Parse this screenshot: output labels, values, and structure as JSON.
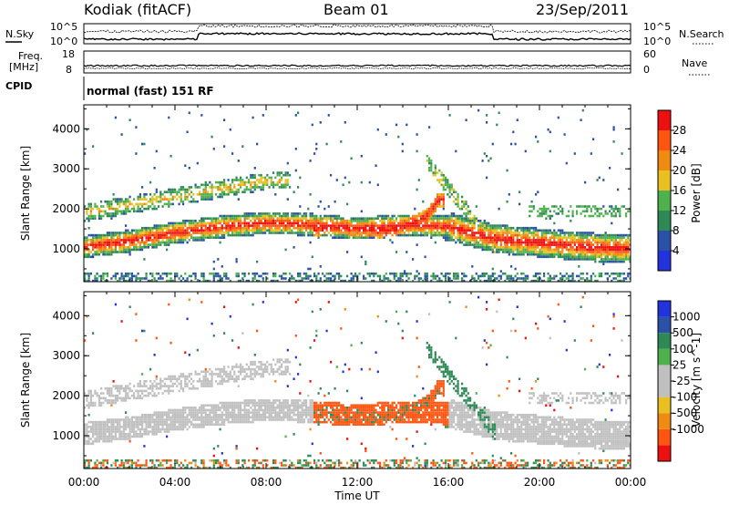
{
  "header": {
    "radar": "Kodiak (fitACF)",
    "beam": "Beam 01",
    "date": "23/Sep/2011"
  },
  "top_labels": {
    "nsky": "N.Sky",
    "freq_line1": "Freq.",
    "freq_line2": "[MHz]",
    "cpid": "CPID",
    "nsearch": "N.Search",
    "nave": "Nave",
    "cpid_text": "normal (fast) 151 RF",
    "noise_tick_hi": "10^5",
    "noise_tick_lo": "10^0",
    "freq_tick_hi": "18",
    "freq_tick_lo": "8",
    "nave_tick_hi": "60",
    "nave_tick_lo": "0"
  },
  "axes": {
    "ylabel": "Slant Range [km]",
    "xlabel": "Time UT",
    "yticks": [
      "1000",
      "2000",
      "3000",
      "4000"
    ],
    "xticks": [
      "00:00",
      "04:00",
      "08:00",
      "12:00",
      "16:00",
      "20:00",
      "00:00"
    ]
  },
  "colors": {
    "power": [
      "#2233dd",
      "#2a50a8",
      "#2e8a55",
      "#4fb04e",
      "#e8c020",
      "#f08a10",
      "#ff5510",
      "#ee1010"
    ],
    "velocity": [
      "#ee1010",
      "#ff5510",
      "#f08a10",
      "#e8c020",
      "#c0c0c0",
      "#c0c0c0",
      "#4fb04e",
      "#2e8a55",
      "#2a50a8",
      "#2233dd"
    ]
  },
  "chart_data": [
    {
      "type": "heatmap",
      "name": "Power",
      "title": "",
      "xlabel": "",
      "ylabel": "Slant Range [km]",
      "xlim_hours": [
        0,
        24
      ],
      "ylim_km": [
        180,
        4600
      ],
      "colorbar": {
        "label": "Power [dB]",
        "ticks": [
          "4",
          "8",
          "12",
          "16",
          "20",
          "24",
          "28"
        ],
        "range": [
          0,
          32
        ]
      },
      "features": [
        {
          "band": "lower",
          "t_hours": [
            0,
            2,
            4,
            6,
            8,
            10,
            12,
            14,
            16,
            18,
            20,
            22,
            24
          ],
          "range_km": [
            1050,
            1200,
            1400,
            1550,
            1650,
            1600,
            1500,
            1600,
            1550,
            1250,
            1150,
            1050,
            1000
          ],
          "max_power_db": 30
        },
        {
          "band": "upper",
          "t_hours": [
            0,
            2,
            4,
            6,
            8
          ],
          "range_km": [
            1900,
            2100,
            2300,
            2500,
            2700
          ],
          "max_power_db": 20
        },
        {
          "band": "midday",
          "t_hours": [
            10,
            11,
            12,
            13,
            14,
            15,
            15.5
          ],
          "range_km": [
            1500,
            1550,
            1500,
            1450,
            1550,
            1800,
            2200
          ],
          "max_power_db": 28
        }
      ]
    },
    {
      "type": "heatmap",
      "name": "Velocity",
      "title": "",
      "xlabel": "Time UT",
      "ylabel": "Slant Range [km]",
      "xlim_hours": [
        0,
        24
      ],
      "ylim_km": [
        180,
        4600
      ],
      "colorbar": {
        "label": "Velocity [m s^-1]",
        "ticks": [
          "1000",
          "500",
          "100",
          "25",
          "-25",
          "-100",
          "-500",
          "-1000"
        ],
        "range": [
          -1000,
          1000
        ]
      }
    }
  ]
}
